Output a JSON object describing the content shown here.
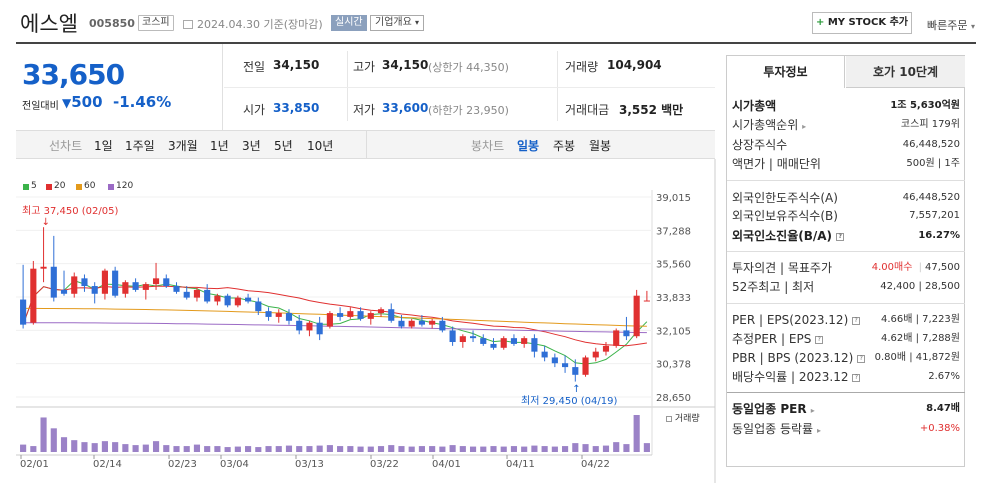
{
  "header": {
    "name": "에스엘",
    "code": "005850",
    "market_badge": "코스피",
    "date_text": "2024.04.30 기준(장마감)",
    "live_badge": "실시간",
    "corp_overview": "기업개요",
    "mystock_label": "MY STOCK 추가",
    "quick_order": "빠른주문"
  },
  "quote": {
    "price": "33,650",
    "diff_label": "전일대비",
    "diff_value": "500",
    "diff_pct": "-1.46%"
  },
  "stats": {
    "prev_close_label": "전일",
    "prev_close": "34,150",
    "high_label": "고가",
    "high": "34,150",
    "high_limit": "(상한가 44,350)",
    "volume_label": "거래량",
    "volume": "104,904",
    "open_label": "시가",
    "open": "33,850",
    "low_label": "저가",
    "low": "33,600",
    "low_limit": "(하한가 23,950)",
    "amount_label": "거래대금",
    "amount": "3,552 백만"
  },
  "periods": {
    "line_chart": "선차트",
    "items": [
      "1일",
      "1주일",
      "3개월",
      "1년",
      "3년",
      "5년",
      "10년"
    ],
    "candle_chart": "봉차트",
    "candle_items": [
      "일봉",
      "주봉",
      "월봉"
    ],
    "selected_candle": "일봉"
  },
  "chart_data": {
    "type": "candlestick",
    "legend": [
      "5",
      "20",
      "60",
      "120"
    ],
    "legend_colors": [
      "#3bb34a",
      "#e03030",
      "#e39a1c",
      "#9b6bc5"
    ],
    "y_ticks": [
      "39,015",
      "37,288",
      "35,560",
      "33,833",
      "32,105",
      "30,378",
      "28,650"
    ],
    "ylim": [
      28650,
      39015
    ],
    "x_labels": [
      "02/01",
      "02/14",
      "02/23",
      "03/04",
      "03/13",
      "03/22",
      "04/01",
      "04/11",
      "04/22"
    ],
    "annotations": {
      "high": "최고 37,450 (02/05)",
      "low": "최저 29,450 (04/19)"
    },
    "volume_label": "거래량",
    "candles": [
      [
        33700,
        35500,
        32200,
        32400
      ],
      [
        32500,
        35700,
        32400,
        35300
      ],
      [
        35300,
        37450,
        34600,
        35400
      ],
      [
        35400,
        37000,
        33600,
        33800
      ],
      [
        34200,
        35200,
        33900,
        34000
      ],
      [
        34000,
        35100,
        33800,
        34900
      ],
      [
        34800,
        35000,
        34100,
        34400
      ],
      [
        34400,
        34600,
        33500,
        34000
      ],
      [
        34000,
        35300,
        33700,
        35200
      ],
      [
        35200,
        35400,
        33800,
        33900
      ],
      [
        34000,
        34700,
        33800,
        34600
      ],
      [
        34600,
        34800,
        34100,
        34200
      ],
      [
        34200,
        34600,
        33700,
        34500
      ],
      [
        34500,
        35600,
        34200,
        34800
      ],
      [
        34800,
        35000,
        34300,
        34400
      ],
      [
        34400,
        34600,
        34000,
        34100
      ],
      [
        34100,
        34400,
        33700,
        33800
      ],
      [
        33800,
        34300,
        33600,
        34200
      ],
      [
        34200,
        34500,
        33500,
        33600
      ],
      [
        33600,
        34000,
        33400,
        33900
      ],
      [
        33900,
        34000,
        33300,
        33400
      ],
      [
        33400,
        33900,
        33300,
        33800
      ],
      [
        33800,
        34000,
        33500,
        33600
      ],
      [
        33600,
        33800,
        32900,
        33100
      ],
      [
        33100,
        33300,
        32600,
        32800
      ],
      [
        32800,
        33200,
        32500,
        33000
      ],
      [
        33000,
        33200,
        32400,
        32600
      ],
      [
        32600,
        32900,
        31900,
        32100
      ],
      [
        32100,
        32600,
        31800,
        32500
      ],
      [
        32500,
        32800,
        31600,
        31900
      ],
      [
        32300,
        33100,
        32200,
        33000
      ],
      [
        33000,
        33300,
        32600,
        32800
      ],
      [
        32800,
        33300,
        32700,
        33100
      ],
      [
        33100,
        33300,
        32600,
        32700
      ],
      [
        32700,
        33100,
        32400,
        33000
      ],
      [
        33000,
        33300,
        32800,
        33200
      ],
      [
        33200,
        33500,
        32500,
        32600
      ],
      [
        32600,
        32900,
        32200,
        32300
      ],
      [
        32300,
        32700,
        32200,
        32600
      ],
      [
        32600,
        32900,
        32300,
        32400
      ],
      [
        32400,
        32700,
        32200,
        32600
      ],
      [
        32600,
        32800,
        32000,
        32100
      ],
      [
        32100,
        32300,
        31300,
        31500
      ],
      [
        31500,
        31900,
        31200,
        31800
      ],
      [
        31800,
        32100,
        31500,
        31700
      ],
      [
        31700,
        31900,
        31300,
        31400
      ],
      [
        31400,
        31700,
        31100,
        31200
      ],
      [
        31200,
        31800,
        31100,
        31700
      ],
      [
        31700,
        31900,
        31300,
        31400
      ],
      [
        31400,
        31800,
        31200,
        31700
      ],
      [
        31700,
        31900,
        30700,
        31000
      ],
      [
        31000,
        31300,
        30500,
        30700
      ],
      [
        30700,
        30900,
        30200,
        30400
      ],
      [
        30400,
        30800,
        29900,
        30200
      ],
      [
        30200,
        30600,
        29450,
        29800
      ],
      [
        29800,
        30800,
        29700,
        30700
      ],
      [
        30700,
        31200,
        30500,
        31000
      ],
      [
        31000,
        31500,
        30800,
        31300
      ],
      [
        31300,
        32200,
        31200,
        32100
      ],
      [
        32100,
        32800,
        31600,
        31800
      ],
      [
        31800,
        34200,
        31700,
        33900
      ],
      [
        33650,
        34150,
        33600,
        33650
      ]
    ],
    "volumes": [
      15,
      12,
      70,
      48,
      30,
      24,
      20,
      18,
      22,
      20,
      16,
      14,
      15,
      22,
      14,
      12,
      12,
      15,
      12,
      12,
      10,
      11,
      12,
      10,
      12,
      12,
      13,
      12,
      12,
      13,
      14,
      12,
      12,
      11,
      11,
      12,
      14,
      12,
      11,
      12,
      12,
      11,
      14,
      12,
      11,
      11,
      12,
      11,
      12,
      11,
      13,
      12,
      11,
      12,
      18,
      16,
      12,
      13,
      20,
      16,
      75,
      18
    ]
  },
  "right_panel": {
    "tab_active": "투자정보",
    "tab_other": "호가 10단계",
    "rows": [
      {
        "k": "시가총액",
        "v": "1조 5,630억원"
      },
      {
        "k": "시가총액순위",
        "v": "코스피 179위"
      },
      {
        "k": "상장주식수",
        "v": "46,448,520"
      },
      {
        "k": "액면가 | 매매단위",
        "v": "500원 | 1주"
      },
      {
        "k": "외국인한도주식수(A)",
        "v": "46,448,520"
      },
      {
        "k": "외국인보유주식수(B)",
        "v": "7,557,201"
      },
      {
        "k": "외국인소진율(B/A)",
        "v": "16.27%"
      },
      {
        "k": "투자의견 | 목표주가",
        "v_red": "4.00매수",
        "v": "47,500"
      },
      {
        "k": "52주최고 | 최저",
        "v": "42,400 | 28,500"
      },
      {
        "k": "PER | EPS(2023.12)",
        "v": "4.66배 | 7,223원"
      },
      {
        "k": "추정PER | EPS",
        "v": "4.62배 | 7,288원"
      },
      {
        "k": "PBR | BPS (2023.12)",
        "v": "0.80배 | 41,872원"
      },
      {
        "k": "배당수익률 | 2023.12",
        "v": "2.67%"
      },
      {
        "k": "동일업종 PER",
        "v": "8.47배"
      },
      {
        "k": "동일업종 등락률",
        "v": "+0.38%"
      }
    ]
  }
}
